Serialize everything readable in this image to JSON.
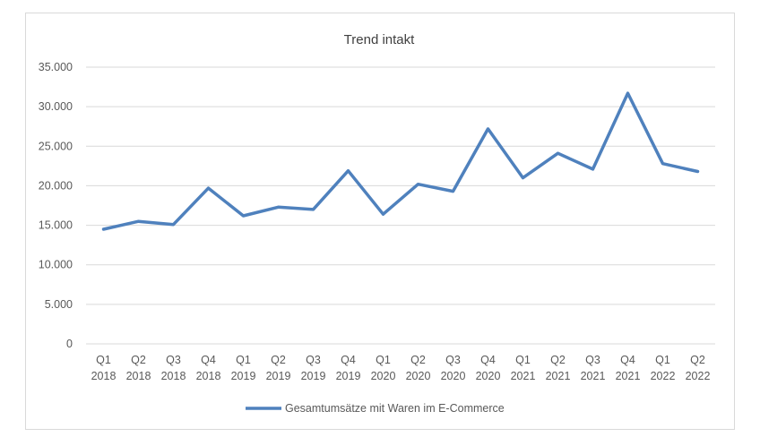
{
  "chart_data": {
    "type": "line",
    "title": "Trend intakt",
    "xlabel": "",
    "ylabel": "",
    "categories": [
      [
        "Q1",
        "2018"
      ],
      [
        "Q2",
        "2018"
      ],
      [
        "Q3",
        "2018"
      ],
      [
        "Q4",
        "2018"
      ],
      [
        "Q1",
        "2019"
      ],
      [
        "Q2",
        "2019"
      ],
      [
        "Q3",
        "2019"
      ],
      [
        "Q4",
        "2019"
      ],
      [
        "Q1",
        "2020"
      ],
      [
        "Q2",
        "2020"
      ],
      [
        "Q3",
        "2020"
      ],
      [
        "Q4",
        "2020"
      ],
      [
        "Q1",
        "2021"
      ],
      [
        "Q2",
        "2021"
      ],
      [
        "Q3",
        "2021"
      ],
      [
        "Q4",
        "2021"
      ],
      [
        "Q1",
        "2022"
      ],
      [
        "Q2",
        "2022"
      ]
    ],
    "series": [
      {
        "name": "Gesamtumsätze mit Waren im E-Commerce",
        "color": "#4f81bd",
        "values": [
          14500,
          15500,
          15100,
          19700,
          16200,
          17300,
          17000,
          21900,
          16400,
          20200,
          19300,
          27200,
          21000,
          24100,
          22100,
          31700,
          22800,
          21800
        ]
      }
    ],
    "ylim": [
      0,
      35000
    ],
    "yticks": [
      0,
      5000,
      10000,
      15000,
      20000,
      25000,
      30000,
      35000
    ],
    "ytick_labels": [
      "0",
      "5.000",
      "10.000",
      "15.000",
      "20.000",
      "25.000",
      "30.000",
      "35.000"
    ],
    "grid": true,
    "legend_position": "bottom",
    "gridline_color": "#d9d9d9"
  }
}
